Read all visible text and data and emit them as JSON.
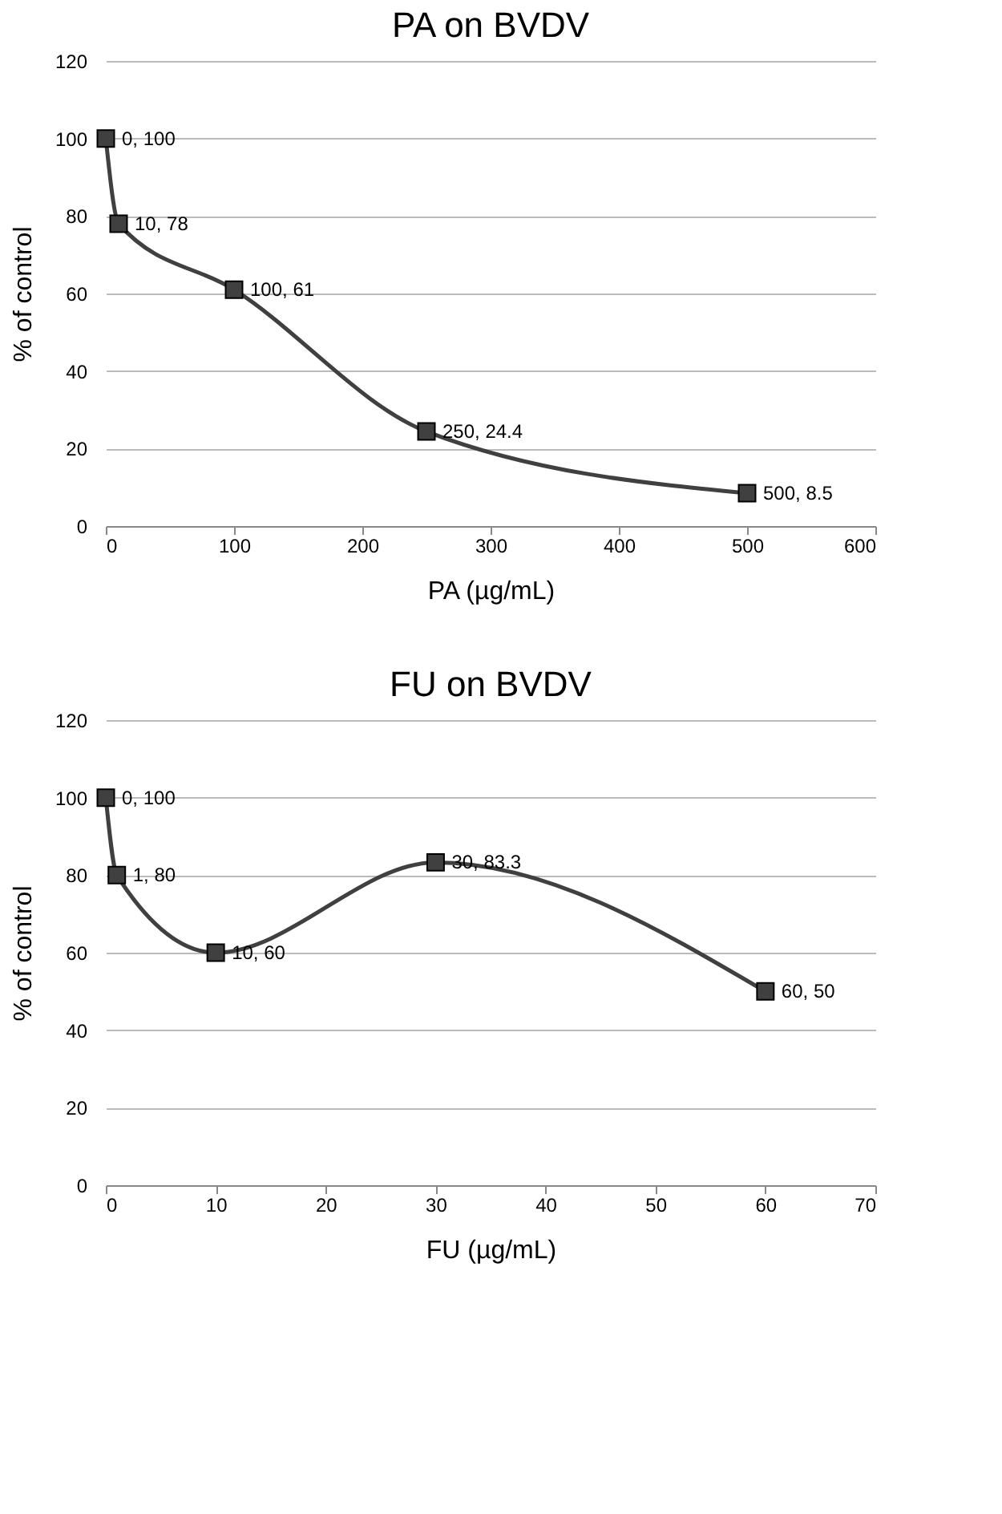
{
  "chart_data": [
    {
      "type": "line",
      "title": "PA on BVDV",
      "xlabel": "PA (µg/mL)",
      "ylabel": "% of control",
      "x": [
        0,
        10,
        100,
        250,
        500
      ],
      "series": [
        {
          "color": "#404040",
          "values": [
            100,
            78,
            61,
            24.4,
            8.5
          ],
          "value_labels": [
            "0, 100",
            "10, 78",
            "100, 61",
            "250, 24.4",
            "500, 8.5"
          ]
        }
      ],
      "marker": "square",
      "xlim": [
        0,
        600
      ],
      "xticks": [
        0,
        100,
        200,
        300,
        400,
        500,
        600
      ],
      "ylim": [
        0,
        120
      ],
      "yticks": [
        0,
        20,
        40,
        60,
        80,
        100,
        120
      ],
      "grid": "y"
    },
    {
      "type": "line",
      "title": "FU on BVDV",
      "xlabel": "FU (µg/mL)",
      "ylabel": "% of control",
      "x": [
        0,
        1,
        10,
        30,
        60
      ],
      "series": [
        {
          "color": "#404040",
          "values": [
            100,
            80,
            60,
            83.3,
            50
          ],
          "value_labels": [
            "0, 100",
            "1, 80",
            "10, 60",
            "30, 83.3",
            "60, 50"
          ]
        }
      ],
      "marker": "square",
      "xlim": [
        0,
        70
      ],
      "xticks": [
        0,
        10,
        20,
        30,
        40,
        50,
        60,
        70
      ],
      "ylim": [
        0,
        120
      ],
      "yticks": [
        0,
        20,
        40,
        60,
        80,
        100,
        120
      ],
      "grid": "y"
    }
  ]
}
